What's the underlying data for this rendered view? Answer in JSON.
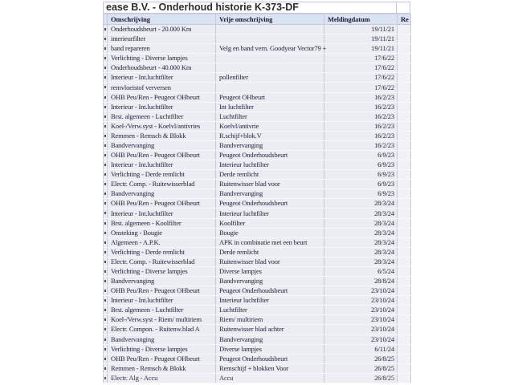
{
  "report": {
    "title": "ease B.V. - Onderhoud historie K-373-DF"
  },
  "table": {
    "columns": [
      "Omschrijving",
      "Vrije omschrijving",
      "Meldingdatum",
      "Re"
    ],
    "rows": [
      {
        "omschrijving": "Onderhoudsbeurt - 20.000 Km",
        "vrije_omschrijving": "",
        "meldingdatum": "19/11/21"
      },
      {
        "omschrijving": "interieurfilter",
        "vrije_omschrijving": "",
        "meldingdatum": "19/11/21"
      },
      {
        "omschrijving": "band repareren",
        "vrije_omschrijving": "Velg en band vern. Goodyear Vector79 +",
        "meldingdatum": "19/11/21"
      },
      {
        "omschrijving": "Verlichting - Diverse lampjes",
        "vrije_omschrijving": "",
        "meldingdatum": "17/6/22"
      },
      {
        "omschrijving": "Onderhoudsbeurt - 40.000 Km",
        "vrije_omschrijving": "",
        "meldingdatum": "17/6/22"
      },
      {
        "omschrijving": "Interieur - Int.luchtfilter",
        "vrije_omschrijving": "pollenfilter",
        "meldingdatum": "17/6/22"
      },
      {
        "omschrijving": "remvloeistof verversen",
        "vrije_omschrijving": "",
        "meldingdatum": "17/6/22"
      },
      {
        "omschrijving": "OHB Peu/Ren - Peugeot OHbeurt",
        "vrije_omschrijving": "Peugeot OHbeurt",
        "meldingdatum": "16/2/23"
      },
      {
        "omschrijving": "Interieur - Int.luchtfilter",
        "vrije_omschrijving": "Int luchtfilter",
        "meldingdatum": "16/2/23"
      },
      {
        "omschrijving": "Brst. algemeen - Luchtfilter",
        "vrije_omschrijving": "Luchtfilter",
        "meldingdatum": "16/2/23"
      },
      {
        "omschrijving": "Koel-/Verw.syst - Koelvl/antivries",
        "vrije_omschrijving": "Koelvl/antivrie",
        "meldingdatum": "16/2/23"
      },
      {
        "omschrijving": "Remmen - Remsch & Blokk",
        "vrije_omschrijving": "R.schijf+blok.V",
        "meldingdatum": "16/2/23"
      },
      {
        "omschrijving": "Bandvervanging",
        "vrije_omschrijving": "Bandvervanging",
        "meldingdatum": "16/2/23"
      },
      {
        "omschrijving": "OHB Peu/Ren - Peugeot OHbeurt",
        "vrije_omschrijving": "Peugeot Onderhoudsbeurt",
        "meldingdatum": "6/9/23"
      },
      {
        "omschrijving": "Interieur - Int.luchtfilter",
        "vrije_omschrijving": "Interieur luchtfilter",
        "meldingdatum": "6/9/23"
      },
      {
        "omschrijving": "Verlichting - Derde remlicht",
        "vrije_omschrijving": "Derde remlicht",
        "meldingdatum": "6/9/23"
      },
      {
        "omschrijving": "Electr. Comp. - Ruitewisserblad",
        "vrije_omschrijving": "Ruitenwisser blad voor",
        "meldingdatum": "6/9/23"
      },
      {
        "omschrijving": "Bandvervanging",
        "vrije_omschrijving": "Bandvervanging",
        "meldingdatum": "6/9/23"
      },
      {
        "omschrijving": "OHB Peu/Ren - Peugeot OHbeurt",
        "vrije_omschrijving": "Peugeot Onderhoudsbeurt",
        "meldingdatum": "28/3/24"
      },
      {
        "omschrijving": "Interieur - Int.luchtfilter",
        "vrije_omschrijving": "Interieur luchtfilter",
        "meldingdatum": "28/3/24"
      },
      {
        "omschrijving": "Brst. algemeen - Koolfilter",
        "vrije_omschrijving": "Koolfilter",
        "meldingdatum": "28/3/24"
      },
      {
        "omschrijving": "Onsteking - Bougie",
        "vrije_omschrijving": "Bougie",
        "meldingdatum": "28/3/24"
      },
      {
        "omschrijving": "Algemeen - A.P.K.",
        "vrije_omschrijving": "APK in combinatie met een beurt",
        "meldingdatum": "28/3/24"
      },
      {
        "omschrijving": "Verlichting - Derde remlicht",
        "vrije_omschrijving": "Derde remlicht",
        "meldingdatum": "28/3/24"
      },
      {
        "omschrijving": "Electr. Comp. - Ruitewisserblad",
        "vrije_omschrijving": "Ruitenwisser blad voor",
        "meldingdatum": "28/3/24"
      },
      {
        "omschrijving": "Verlichting - Diverse lampjes",
        "vrije_omschrijving": "Diverse lampjes",
        "meldingdatum": "6/5/24"
      },
      {
        "omschrijving": "Bandvervanging",
        "vrije_omschrijving": "Bandvervanging",
        "meldingdatum": "28/8/24"
      },
      {
        "omschrijving": "OHB Peu/Ren - Peugeot OHbeurt",
        "vrije_omschrijving": "Peugeot Onderhoudsbeurt",
        "meldingdatum": "23/10/24"
      },
      {
        "omschrijving": "Interieur - Int.luchtfilter",
        "vrije_omschrijving": "Interieur luchtfilter",
        "meldingdatum": "23/10/24"
      },
      {
        "omschrijving": "Brst. algemeen - Luchtfilter",
        "vrije_omschrijving": "Luchtfilter",
        "meldingdatum": "23/10/24"
      },
      {
        "omschrijving": "Koel-/Verw.syst - Riem/ multiriem",
        "vrije_omschrijving": "Riem/ multiriem",
        "meldingdatum": "23/10/24"
      },
      {
        "omschrijving": "Electr. Compon. - Ruitenw.blad A",
        "vrije_omschrijving": "Ruitenwisser blad achter",
        "meldingdatum": "23/10/24"
      },
      {
        "omschrijving": "Bandvervanging",
        "vrije_omschrijving": "Bandvervanging",
        "meldingdatum": "23/10/24"
      },
      {
        "omschrijving": "Verlichting - Diverse lampjes",
        "vrije_omschrijving": "Diverse lampjes",
        "meldingdatum": "6/11/24"
      },
      {
        "omschrijving": "OHB Peu/Ren - Peugeot OHbeurt",
        "vrije_omschrijving": "Peugeot Onderhoudsbeurt",
        "meldingdatum": "26/8/25"
      },
      {
        "omschrijving": "Remmen - Remsch & Blokk",
        "vrije_omschrijving": "Remschijf + blokken Voor",
        "meldingdatum": "26/8/25"
      },
      {
        "omschrijving": "Electr. Alg - Accu",
        "vrije_omschrijving": "Accu",
        "meldingdatum": "26/8/25"
      }
    ]
  },
  "colors": {
    "header_bg": "#dae3f1",
    "row_bg": "#ececf3",
    "text": "#23233c",
    "title_text": "#2e2e2e",
    "grid_line": "#c9c9d6"
  }
}
